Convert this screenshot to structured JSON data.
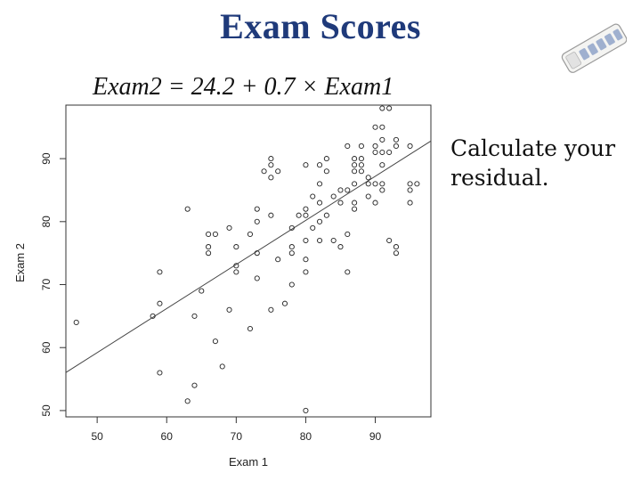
{
  "slide": {
    "title": "Exam Scores",
    "equation": "Exam2 = 24.2 + 0.7 × Exam1",
    "side_text": "Calculate your residual."
  },
  "chart_data": {
    "type": "scatter",
    "xlabel": "Exam 1",
    "ylabel": "Exam 2",
    "xlim": [
      45.5,
      98
    ],
    "ylim": [
      49,
      98.5
    ],
    "xticks": [
      50,
      60,
      70,
      80,
      90
    ],
    "yticks": [
      50,
      60,
      70,
      80,
      90
    ],
    "regression": {
      "intercept": 24.2,
      "slope": 0.7
    },
    "points": [
      [
        47,
        64
      ],
      [
        58,
        65
      ],
      [
        59,
        67
      ],
      [
        59,
        72
      ],
      [
        59,
        56
      ],
      [
        63,
        82
      ],
      [
        63,
        51.5
      ],
      [
        64,
        54
      ],
      [
        64,
        65
      ],
      [
        65,
        69
      ],
      [
        66,
        76
      ],
      [
        66,
        78
      ],
      [
        66,
        75
      ],
      [
        67,
        78
      ],
      [
        67,
        61
      ],
      [
        68,
        57
      ],
      [
        69,
        66
      ],
      [
        69,
        79
      ],
      [
        70,
        72
      ],
      [
        70,
        73
      ],
      [
        70,
        76
      ],
      [
        72,
        63
      ],
      [
        72,
        78
      ],
      [
        73,
        80
      ],
      [
        73,
        82
      ],
      [
        73,
        75
      ],
      [
        73,
        71
      ],
      [
        74,
        88
      ],
      [
        75,
        90
      ],
      [
        75,
        89
      ],
      [
        75,
        87
      ],
      [
        75,
        81
      ],
      [
        75,
        66
      ],
      [
        76,
        88
      ],
      [
        76,
        74
      ],
      [
        77,
        67
      ],
      [
        78,
        79
      ],
      [
        78,
        76
      ],
      [
        78,
        75
      ],
      [
        78,
        70
      ],
      [
        79,
        81
      ],
      [
        80,
        89
      ],
      [
        80,
        82
      ],
      [
        80,
        81
      ],
      [
        80,
        77
      ],
      [
        80,
        72
      ],
      [
        80,
        74
      ],
      [
        80,
        50
      ],
      [
        81,
        84
      ],
      [
        81,
        79
      ],
      [
        82,
        89
      ],
      [
        82,
        86
      ],
      [
        82,
        83
      ],
      [
        82,
        80
      ],
      [
        82,
        77
      ],
      [
        83,
        90
      ],
      [
        83,
        88
      ],
      [
        83,
        81
      ],
      [
        84,
        84
      ],
      [
        84,
        77
      ],
      [
        85,
        85
      ],
      [
        85,
        83
      ],
      [
        85,
        76
      ],
      [
        86,
        92
      ],
      [
        86,
        85
      ],
      [
        86,
        78
      ],
      [
        86,
        72
      ],
      [
        87,
        90
      ],
      [
        87,
        89
      ],
      [
        87,
        88
      ],
      [
        87,
        86
      ],
      [
        87,
        83
      ],
      [
        87,
        82
      ],
      [
        88,
        92
      ],
      [
        88,
        90
      ],
      [
        88,
        89
      ],
      [
        88,
        88
      ],
      [
        89,
        87
      ],
      [
        89,
        86
      ],
      [
        89,
        84
      ],
      [
        90,
        95
      ],
      [
        90,
        92
      ],
      [
        90,
        91
      ],
      [
        90,
        86
      ],
      [
        90,
        83
      ],
      [
        91,
        98
      ],
      [
        91,
        95
      ],
      [
        91,
        93
      ],
      [
        91,
        91
      ],
      [
        91,
        89
      ],
      [
        91,
        86
      ],
      [
        91,
        85
      ],
      [
        92,
        98
      ],
      [
        92,
        91
      ],
      [
        92,
        77
      ],
      [
        93,
        92
      ],
      [
        93,
        93
      ],
      [
        93,
        76
      ],
      [
        93,
        75
      ],
      [
        95,
        92
      ],
      [
        95,
        86
      ],
      [
        95,
        85
      ],
      [
        95,
        83
      ],
      [
        96,
        86
      ]
    ]
  },
  "icon": {
    "clicker": "clicker-remote-icon"
  }
}
